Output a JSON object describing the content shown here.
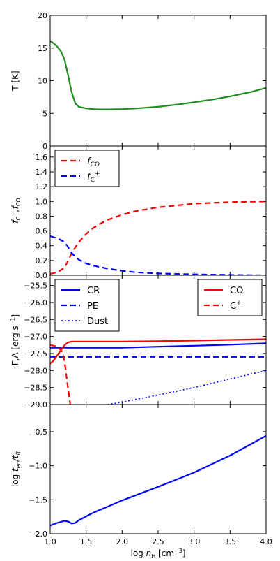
{
  "chart_data": {
    "type": "line",
    "shared_x": {
      "label": "log n_H [cm^-3]",
      "label_parts": {
        "prefix": "log ",
        "var": "n",
        "sub": "H",
        "unit": " [cm",
        "exp": "−3",
        "close": "]"
      },
      "xlim": [
        1.0,
        4.0
      ],
      "ticks": [
        1.0,
        1.5,
        2.0,
        2.5,
        3.0,
        3.5,
        4.0
      ],
      "tick_labels": [
        "1.0",
        "1.5",
        "2.0",
        "2.5",
        "3.0",
        "3.5",
        "4.0"
      ]
    },
    "panels": [
      {
        "id": "temperature",
        "ylabel": "T [K]",
        "ylim": [
          0,
          20
        ],
        "yticks": [
          0,
          5,
          10,
          15,
          20
        ],
        "ytick_labels": [
          "0",
          "5",
          "10",
          "15",
          "20"
        ],
        "legend": null,
        "series": [
          {
            "name": "T",
            "color": "#228b22",
            "dash": "solid",
            "x": [
              1.0,
              1.05,
              1.1,
              1.15,
              1.2,
              1.25,
              1.3,
              1.35,
              1.4,
              1.5,
              1.6,
              1.7,
              1.8,
              2.0,
              2.2,
              2.5,
              2.8,
              3.0,
              3.3,
              3.5,
              3.8,
              4.0
            ],
            "y": [
              16.1,
              15.7,
              15.2,
              14.5,
              13.2,
              10.8,
              8.2,
              6.5,
              6.0,
              5.75,
              5.65,
              5.6,
              5.6,
              5.65,
              5.75,
              6.0,
              6.4,
              6.7,
              7.2,
              7.6,
              8.3,
              8.9
            ]
          }
        ]
      },
      {
        "id": "fractions",
        "ylabel_parts": {
          "a": "f",
          "a_sub": "C",
          "a_sup": "+",
          "b": ",f",
          "b_sub": "CO"
        },
        "ylim": [
          0,
          1.75
        ],
        "yticks": [
          0.0,
          0.2,
          0.4,
          0.6,
          0.8,
          1.0,
          1.2,
          1.4,
          1.6
        ],
        "ytick_labels": [
          "0.0",
          "0.2",
          "0.4",
          "0.6",
          "0.8",
          "1.0",
          "1.2",
          "1.4",
          "1.6"
        ],
        "legend": {
          "position": "upper-left",
          "entries": [
            {
              "color": "#ff0000",
              "dash": "dashed",
              "label": "f",
              "sub": "CO",
              "sup": ""
            },
            {
              "color": "#0000ff",
              "dash": "dashed",
              "label": "f",
              "sub": "C",
              "sup": "+"
            }
          ]
        },
        "series": [
          {
            "name": "f_CO",
            "color": "#ff0000",
            "dash": "dashed",
            "x": [
              1.0,
              1.1,
              1.2,
              1.25,
              1.3,
              1.35,
              1.4,
              1.5,
              1.6,
              1.7,
              1.8,
              2.0,
              2.2,
              2.5,
              2.8,
              3.0,
              3.5,
              4.0
            ],
            "y": [
              0.02,
              0.04,
              0.1,
              0.2,
              0.3,
              0.38,
              0.45,
              0.56,
              0.64,
              0.7,
              0.75,
              0.82,
              0.87,
              0.92,
              0.95,
              0.97,
              0.99,
              1.0
            ]
          },
          {
            "name": "f_C+",
            "color": "#0000ff",
            "dash": "dashed",
            "x": [
              1.0,
              1.1,
              1.2,
              1.25,
              1.3,
              1.35,
              1.4,
              1.5,
              1.6,
              1.7,
              1.8,
              2.0,
              2.2,
              2.5,
              3.0,
              3.5,
              4.0
            ],
            "y": [
              0.53,
              0.5,
              0.45,
              0.38,
              0.3,
              0.25,
              0.21,
              0.16,
              0.13,
              0.11,
              0.09,
              0.06,
              0.04,
              0.025,
              0.012,
              0.005,
              0.0
            ]
          }
        ]
      },
      {
        "id": "heating_cooling",
        "ylabel_parts": {
          "text": "Γ,Λ [erg s",
          "exp": "−1",
          "close": "]"
        },
        "ylim": [
          -29.0,
          -25.2
        ],
        "yticks": [
          -29.0,
          -28.5,
          -28.0,
          -27.5,
          -27.0,
          -26.5,
          -26.0,
          -25.5
        ],
        "ytick_labels": [
          "−29.0",
          "−28.5",
          "−28.0",
          "−27.5",
          "−27.0",
          "−26.5",
          "−26.0",
          "−25.5"
        ],
        "legends": [
          {
            "position": "upper-left",
            "entries": [
              {
                "color": "#0000ff",
                "dash": "solid",
                "label": "CR"
              },
              {
                "color": "#0000ff",
                "dash": "dashed",
                "label": "PE"
              },
              {
                "color": "#0000ff",
                "dash": "dotted",
                "label": "Dust"
              }
            ]
          },
          {
            "position": "upper-right",
            "entries": [
              {
                "color": "#ff0000",
                "dash": "solid",
                "label": "CO",
                "sup": ""
              },
              {
                "color": "#ff0000",
                "dash": "dashed",
                "label": "C",
                "sup": "+"
              }
            ]
          }
        ],
        "series": [
          {
            "name": "CR",
            "color": "#0000ff",
            "dash": "solid",
            "x": [
              1.0,
              1.5,
              2.0,
              2.5,
              3.0,
              3.5,
              4.0
            ],
            "y": [
              -27.33,
              -27.33,
              -27.33,
              -27.3,
              -27.27,
              -27.24,
              -27.2
            ]
          },
          {
            "name": "PE",
            "color": "#0000ff",
            "dash": "dashed",
            "x": [
              1.0,
              4.0
            ],
            "y": [
              -27.6,
              -27.6
            ]
          },
          {
            "name": "Dust",
            "color": "#0000ff",
            "dash": "dotted",
            "x": [
              1.8,
              2.0,
              2.5,
              3.0,
              3.5,
              4.0
            ],
            "y": [
              -29.0,
              -28.93,
              -28.72,
              -28.5,
              -28.25,
              -28.0
            ]
          },
          {
            "name": "CO",
            "color": "#ff0000",
            "dash": "solid",
            "x": [
              1.0,
              1.05,
              1.1,
              1.15,
              1.2,
              1.25,
              1.3,
              1.5,
              2.0,
              2.5,
              3.0,
              3.5,
              4.0
            ],
            "y": [
              -27.8,
              -27.7,
              -27.55,
              -27.4,
              -27.25,
              -27.17,
              -27.15,
              -27.15,
              -27.15,
              -27.14,
              -27.12,
              -27.1,
              -27.08
            ]
          },
          {
            "name": "C+",
            "color": "#ff0000",
            "dash": "dashed",
            "x": [
              1.0,
              1.05,
              1.1,
              1.15,
              1.18,
              1.2,
              1.22,
              1.24,
              1.26,
              1.28
            ],
            "y": [
              -27.25,
              -27.27,
              -27.3,
              -27.4,
              -27.55,
              -27.75,
              -28.05,
              -28.4,
              -28.7,
              -29.0
            ]
          }
        ]
      },
      {
        "id": "timescale",
        "ylabel_parts": {
          "prefix": "log ",
          "a": "t",
          "a_sub": "eq",
          "b": "/t",
          "b_sub": "ff"
        },
        "ylim": [
          -2.0,
          -0.1
        ],
        "yticks": [
          -2.0,
          -1.5,
          -1.0,
          -0.5
        ],
        "ytick_labels": [
          "−2.0",
          "−1.5",
          "−1.0",
          "−0.5"
        ],
        "legend": null,
        "series": [
          {
            "name": "t_eq/t_ff",
            "color": "#0000ff",
            "dash": "solid",
            "x": [
              1.0,
              1.1,
              1.2,
              1.25,
              1.3,
              1.35,
              1.4,
              1.6,
              1.8,
              2.0,
              2.5,
              3.0,
              3.5,
              4.0
            ],
            "y": [
              -1.88,
              -1.84,
              -1.81,
              -1.82,
              -1.85,
              -1.84,
              -1.8,
              -1.69,
              -1.6,
              -1.51,
              -1.31,
              -1.1,
              -0.85,
              -0.56
            ]
          }
        ]
      }
    ]
  }
}
